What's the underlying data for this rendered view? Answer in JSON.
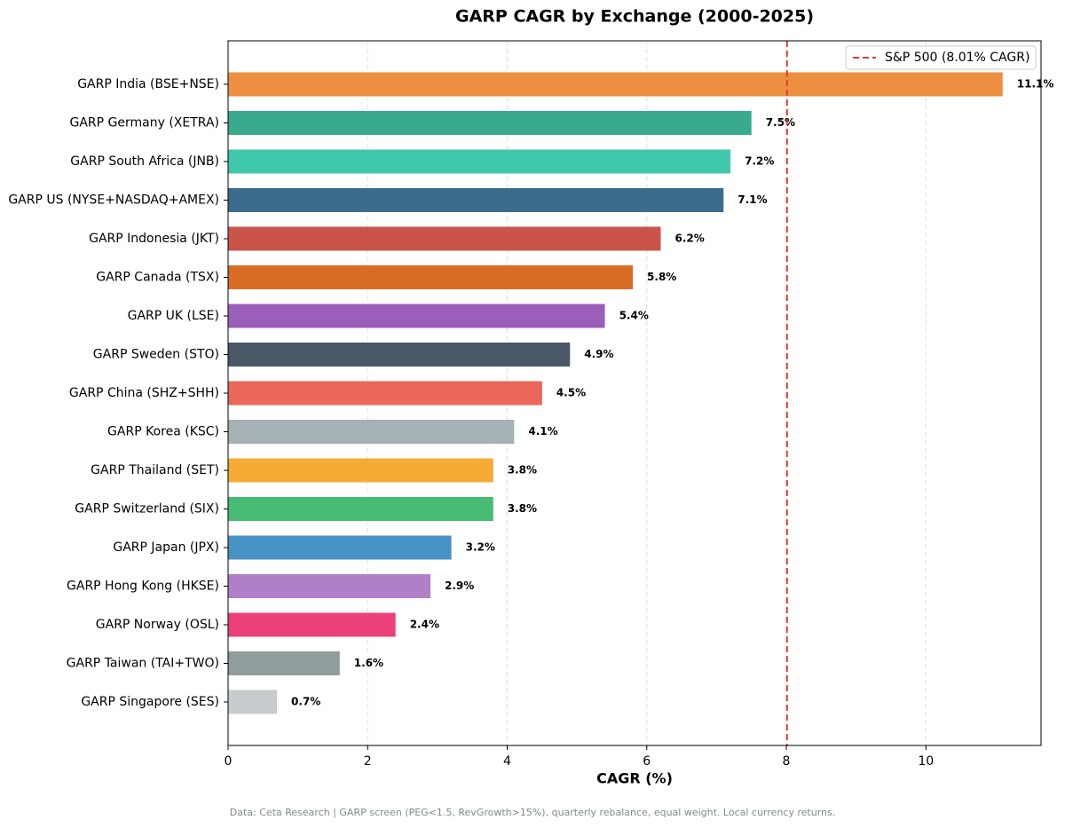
{
  "chart_data": {
    "type": "barh",
    "title": "GARP CAGR by Exchange (2000-2025)",
    "x_label": "CAGR (%)",
    "footnote": "Data: Ceta Research | GARP screen (PEG<1.5, RevGrowth>15%), quarterly rebalance, equal weight. Local currency returns.",
    "categories": [
      "GARP India (BSE+NSE)",
      "GARP Germany (XETRA)",
      "GARP South Africa (JNB)",
      "GARP US (NYSE+NASDAQ+AMEX)",
      "GARP Indonesia (JKT)",
      "GARP Canada (TSX)",
      "GARP UK (LSE)",
      "GARP Sweden (STO)",
      "GARP China (SHZ+SHH)",
      "GARP Korea (KSC)",
      "GARP Thailand (SET)",
      "GARP Switzerland (SIX)",
      "GARP Japan (JPX)",
      "GARP Hong Kong (HKSE)",
      "GARP Norway (OSL)",
      "GARP Taiwan (TAI+TWO)",
      "GARP Singapore (SES)"
    ],
    "values": [
      11.1,
      7.5,
      7.2,
      7.1,
      6.2,
      5.8,
      5.4,
      4.9,
      4.5,
      4.1,
      3.8,
      3.8,
      3.2,
      2.9,
      2.4,
      1.6,
      0.7
    ],
    "value_labels": [
      "11.1%",
      "7.5%",
      "7.2%",
      "7.1%",
      "6.2%",
      "5.8%",
      "5.4%",
      "4.9%",
      "4.5%",
      "4.1%",
      "3.8%",
      "3.8%",
      "3.2%",
      "2.9%",
      "2.4%",
      "1.6%",
      "0.7%"
    ],
    "colors": [
      "#ec8f40",
      "#3aaa8f",
      "#3fc8ab",
      "#3d6b8c",
      "#c9554a",
      "#d96c25",
      "#9b5fba",
      "#4a5868",
      "#eb675a",
      "#a5b1b2",
      "#f5ab35",
      "#47ba74",
      "#4893c5",
      "#b07fc7",
      "#ec407a",
      "#919c9c",
      "#c8ccce"
    ],
    "reference_line": {
      "value": 8.01,
      "label": "S&P 500 (8.01% CAGR)",
      "color": "#e03c31"
    },
    "xlim": [
      0,
      11.65
    ],
    "xticks": [
      0,
      2,
      4,
      6,
      8,
      10
    ],
    "grid": true,
    "legend": "upper right"
  }
}
